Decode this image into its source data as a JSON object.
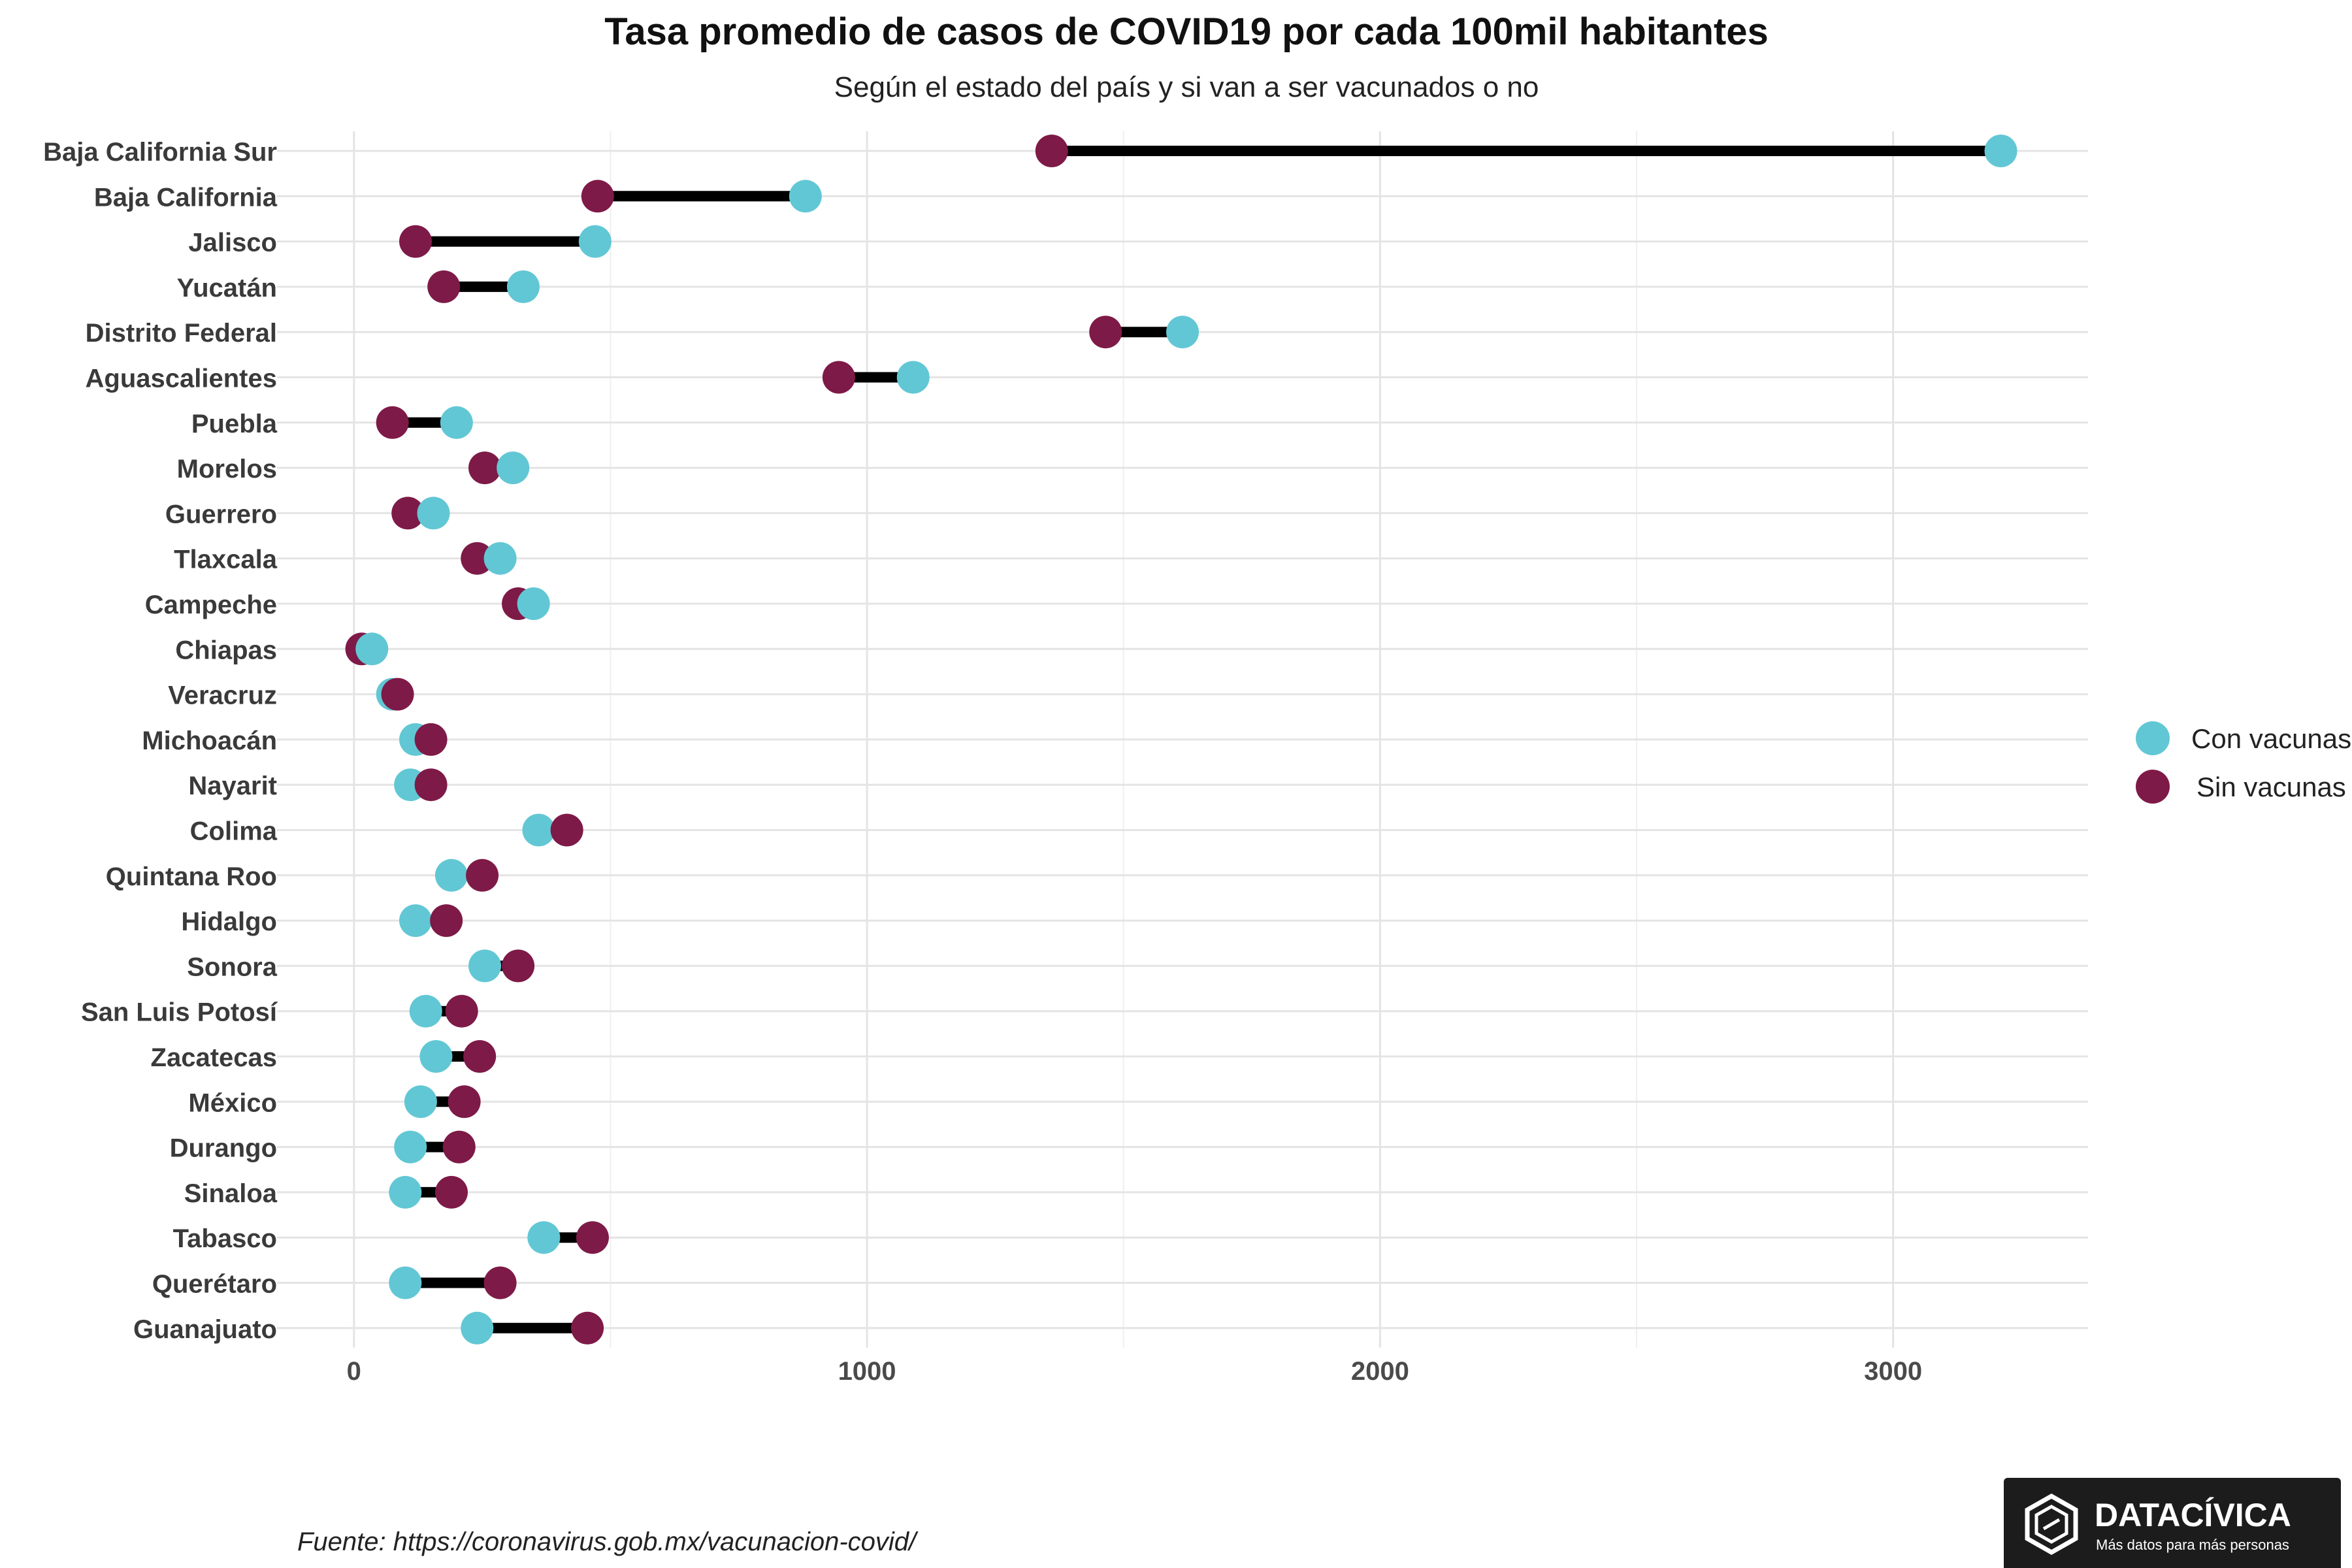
{
  "chart_data": {
    "type": "dumbbell",
    "title": "Tasa promedio de casos de COVID19 por cada 100mil habitantes",
    "subtitle": "Según el estado del país y si van a ser vacunados o no",
    "xlabel": "",
    "ylabel": "",
    "xlim": [
      -150,
      3380
    ],
    "xticks": [
      0,
      1000,
      2000,
      3000
    ],
    "xtick_labels": [
      "0",
      "1000",
      "2000",
      "3000"
    ],
    "grid": true,
    "legend_position": "right",
    "categories": [
      "Baja California Sur",
      "Baja California",
      "Jalisco",
      "Yucatán",
      "Distrito Federal",
      "Aguascalientes",
      "Puebla",
      "Morelos",
      "Guerrero",
      "Tlaxcala",
      "Campeche",
      "Chiapas",
      "Veracruz",
      "Michoacán",
      "Nayarit",
      "Colima",
      "Quintana Roo",
      "Hidalgo",
      "Sonora",
      "San Luis Potosí",
      "Zacatecas",
      "México",
      "Durango",
      "Sinaloa",
      "Tabasco",
      "Querétaro",
      "Guanajuato"
    ],
    "series": [
      {
        "name": "Con vacunas",
        "color": "#62c7d4",
        "values": [
          3210,
          880,
          470,
          330,
          1615,
          1090,
          200,
          310,
          155,
          285,
          350,
          35,
          75,
          120,
          110,
          360,
          190,
          120,
          255,
          140,
          160,
          130,
          110,
          100,
          370,
          100,
          240
        ]
      },
      {
        "name": "Sin vacunas",
        "color": "#7e1a47",
        "values": [
          1360,
          475,
          120,
          175,
          1465,
          945,
          75,
          255,
          105,
          240,
          320,
          15,
          85,
          150,
          150,
          415,
          250,
          180,
          320,
          210,
          245,
          215,
          205,
          190,
          465,
          285,
          455
        ]
      }
    ]
  },
  "source": {
    "text": "Fuente: https://coronavirus.gob.mx/vacunacion-covid/"
  },
  "logo": {
    "name": "DATACÍVICA",
    "tagline": "Más datos para más personas",
    "background": "#1c1c1c"
  }
}
